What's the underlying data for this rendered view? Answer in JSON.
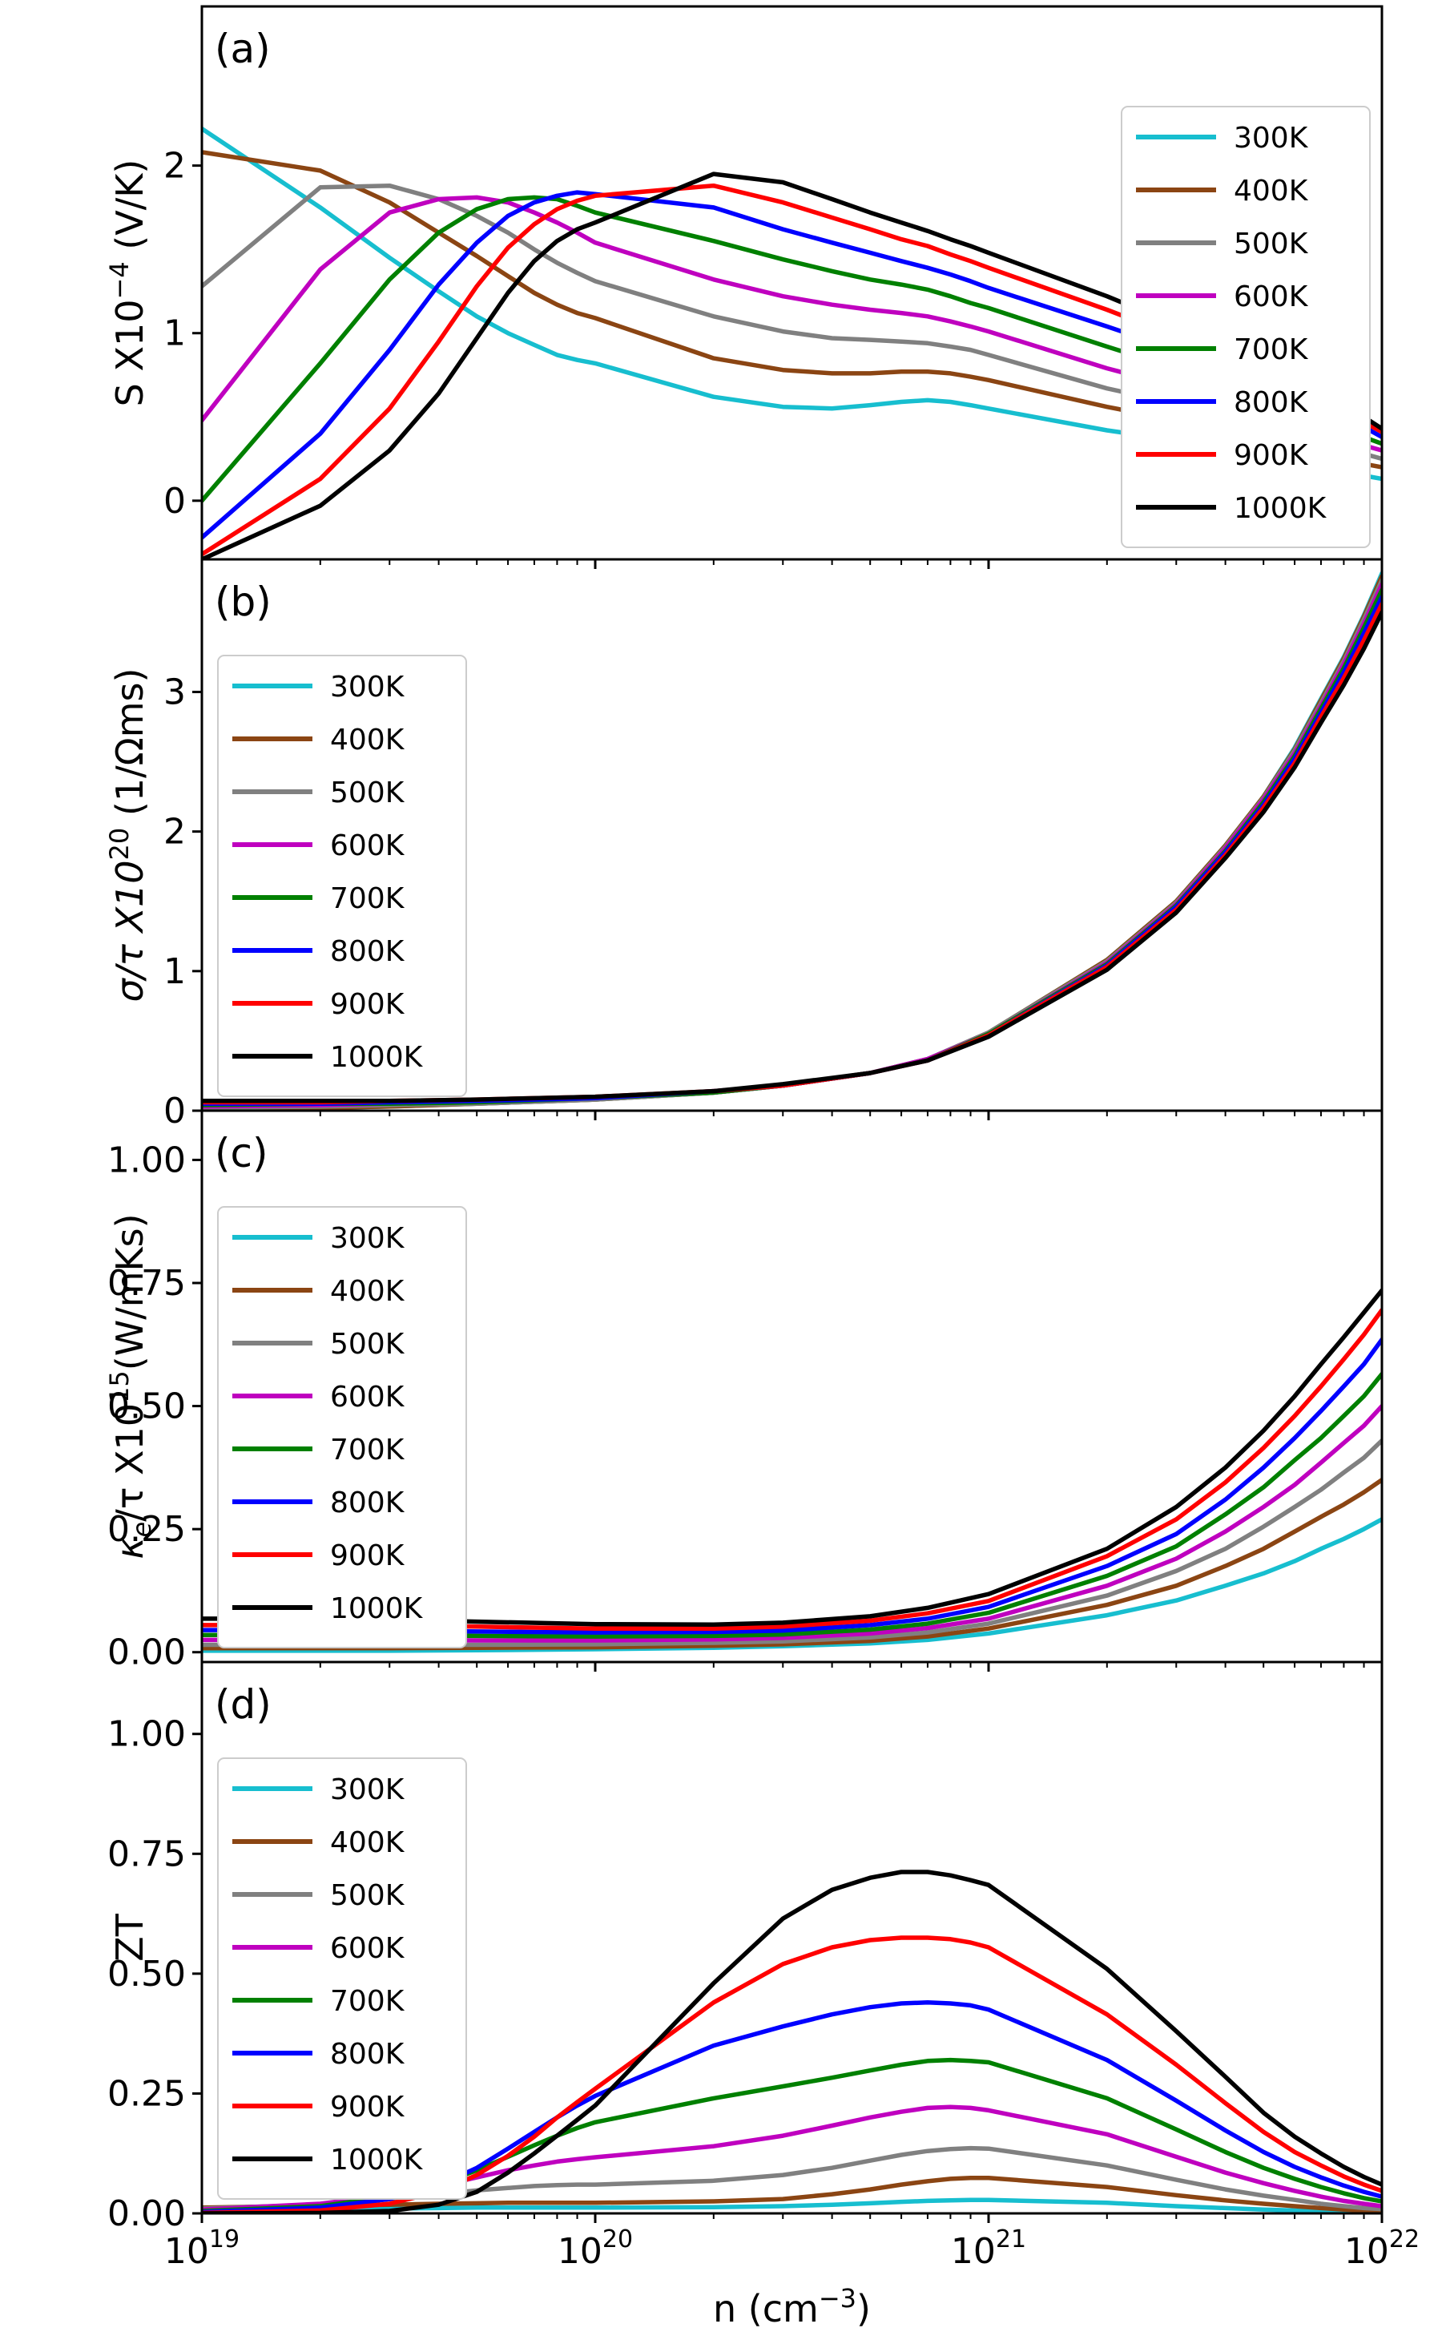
{
  "chart_data": [
    {
      "panel": "(a)",
      "type": "line",
      "ylabel": "S X10",
      "ylabel_sup": "−4",
      "ylabel_unit": " (V/K)",
      "ylim": [
        -0.35,
        2.95
      ],
      "yticks": [
        "0",
        "1",
        "2"
      ],
      "ytick_values": [
        0,
        1,
        2
      ],
      "legend": "right",
      "x": [
        1e+19,
        2e+19,
        3e+19,
        4e+19,
        5e+19,
        6e+19,
        7e+19,
        8e+19,
        9e+19,
        1e+20,
        2e+20,
        3e+20,
        4e+20,
        5e+20,
        6e+20,
        7e+20,
        8e+20,
        9e+20,
        1e+21,
        2e+21,
        3e+21,
        4e+21,
        5e+21,
        6e+21,
        7e+21,
        8e+21,
        9e+21,
        1e+22
      ],
      "series": [
        {
          "name": "300K",
          "values": [
            2.22,
            1.75,
            1.45,
            1.25,
            1.1,
            1.0,
            0.93,
            0.87,
            0.84,
            0.82,
            0.62,
            0.56,
            0.55,
            0.57,
            0.59,
            0.6,
            0.59,
            0.57,
            0.55,
            0.42,
            0.36,
            0.3,
            0.25,
            0.22,
            0.19,
            0.17,
            0.15,
            0.13
          ]
        },
        {
          "name": "400K",
          "values": [
            2.08,
            1.97,
            1.78,
            1.6,
            1.46,
            1.34,
            1.24,
            1.17,
            1.12,
            1.09,
            0.85,
            0.78,
            0.76,
            0.76,
            0.77,
            0.77,
            0.76,
            0.74,
            0.72,
            0.56,
            0.48,
            0.41,
            0.35,
            0.31,
            0.27,
            0.24,
            0.22,
            0.2
          ]
        },
        {
          "name": "500K",
          "values": [
            1.28,
            1.87,
            1.88,
            1.8,
            1.7,
            1.6,
            1.5,
            1.42,
            1.36,
            1.31,
            1.1,
            1.01,
            0.97,
            0.96,
            0.95,
            0.94,
            0.92,
            0.9,
            0.87,
            0.67,
            0.58,
            0.5,
            0.43,
            0.38,
            0.34,
            0.31,
            0.28,
            0.25
          ]
        },
        {
          "name": "600K",
          "values": [
            0.48,
            1.38,
            1.72,
            1.8,
            1.81,
            1.78,
            1.72,
            1.66,
            1.6,
            1.54,
            1.32,
            1.22,
            1.17,
            1.14,
            1.12,
            1.1,
            1.07,
            1.04,
            1.01,
            0.79,
            0.68,
            0.59,
            0.51,
            0.45,
            0.41,
            0.37,
            0.33,
            0.3
          ]
        },
        {
          "name": "700K",
          "values": [
            0.0,
            0.82,
            1.32,
            1.6,
            1.74,
            1.8,
            1.81,
            1.8,
            1.76,
            1.72,
            1.55,
            1.44,
            1.37,
            1.32,
            1.29,
            1.26,
            1.22,
            1.18,
            1.15,
            0.92,
            0.79,
            0.69,
            0.6,
            0.53,
            0.48,
            0.43,
            0.38,
            0.34
          ]
        },
        {
          "name": "800K",
          "values": [
            -0.22,
            0.4,
            0.9,
            1.29,
            1.54,
            1.7,
            1.78,
            1.82,
            1.84,
            1.83,
            1.75,
            1.62,
            1.54,
            1.48,
            1.43,
            1.39,
            1.35,
            1.31,
            1.27,
            1.04,
            0.9,
            0.79,
            0.69,
            0.61,
            0.55,
            0.49,
            0.44,
            0.38
          ]
        },
        {
          "name": "900K",
          "values": [
            -0.32,
            0.13,
            0.55,
            0.95,
            1.28,
            1.51,
            1.65,
            1.74,
            1.79,
            1.82,
            1.88,
            1.78,
            1.69,
            1.62,
            1.56,
            1.52,
            1.47,
            1.43,
            1.39,
            1.14,
            0.98,
            0.86,
            0.75,
            0.67,
            0.6,
            0.53,
            0.47,
            0.41
          ]
        },
        {
          "name": "1000K",
          "values": [
            -0.35,
            -0.03,
            0.3,
            0.64,
            0.97,
            1.24,
            1.43,
            1.55,
            1.62,
            1.66,
            1.95,
            1.9,
            1.8,
            1.72,
            1.66,
            1.61,
            1.56,
            1.52,
            1.48,
            1.22,
            1.05,
            0.92,
            0.81,
            0.72,
            0.64,
            0.57,
            0.5,
            0.43
          ]
        }
      ]
    },
    {
      "panel": "(b)",
      "type": "line",
      "ylabel": "σ/τ X10",
      "ylabel_sup": "20",
      "ylabel_unit": " (1/Ωms)",
      "ylim": [
        0,
        3.95
      ],
      "yticks": [
        "0",
        "1",
        "2",
        "3"
      ],
      "ytick_values": [
        0,
        1,
        2,
        3
      ],
      "legend": "upper left",
      "x": [
        1e+19,
        2e+19,
        3e+19,
        5e+19,
        1e+20,
        2e+20,
        3e+20,
        5e+20,
        7e+20,
        1e+21,
        2e+21,
        3e+21,
        4e+21,
        5e+21,
        6e+21,
        7e+21,
        8e+21,
        9e+21,
        1e+22
      ],
      "series": [
        {
          "name": "300K",
          "values": [
            0.01,
            0.02,
            0.03,
            0.05,
            0.08,
            0.13,
            0.18,
            0.27,
            0.37,
            0.56,
            1.08,
            1.5,
            1.9,
            2.25,
            2.6,
            2.95,
            3.25,
            3.55,
            3.85
          ]
        },
        {
          "name": "400K",
          "values": [
            0.01,
            0.02,
            0.03,
            0.05,
            0.08,
            0.13,
            0.18,
            0.27,
            0.37,
            0.56,
            1.08,
            1.5,
            1.9,
            2.25,
            2.59,
            2.94,
            3.24,
            3.54,
            3.83
          ]
        },
        {
          "name": "500K",
          "values": [
            0.02,
            0.03,
            0.04,
            0.05,
            0.08,
            0.13,
            0.18,
            0.27,
            0.37,
            0.56,
            1.07,
            1.49,
            1.89,
            2.24,
            2.58,
            2.92,
            3.22,
            3.52,
            3.8
          ]
        },
        {
          "name": "600K",
          "values": [
            0.03,
            0.04,
            0.05,
            0.06,
            0.09,
            0.13,
            0.18,
            0.27,
            0.37,
            0.55,
            1.06,
            1.48,
            1.88,
            2.23,
            2.56,
            2.9,
            3.2,
            3.49,
            3.77
          ]
        },
        {
          "name": "700K",
          "values": [
            0.04,
            0.05,
            0.05,
            0.06,
            0.09,
            0.13,
            0.18,
            0.27,
            0.36,
            0.55,
            1.05,
            1.47,
            1.86,
            2.21,
            2.54,
            2.88,
            3.17,
            3.46,
            3.73
          ]
        },
        {
          "name": "800K",
          "values": [
            0.05,
            0.05,
            0.06,
            0.07,
            0.09,
            0.14,
            0.18,
            0.27,
            0.36,
            0.54,
            1.04,
            1.46,
            1.85,
            2.19,
            2.52,
            2.85,
            3.14,
            3.42,
            3.68
          ]
        },
        {
          "name": "900K",
          "values": [
            0.06,
            0.06,
            0.07,
            0.08,
            0.1,
            0.14,
            0.18,
            0.27,
            0.36,
            0.54,
            1.03,
            1.44,
            1.83,
            2.17,
            2.49,
            2.82,
            3.1,
            3.37,
            3.63
          ]
        },
        {
          "name": "1000K",
          "values": [
            0.07,
            0.07,
            0.07,
            0.08,
            0.1,
            0.14,
            0.19,
            0.27,
            0.36,
            0.53,
            1.01,
            1.42,
            1.81,
            2.14,
            2.46,
            2.78,
            3.05,
            3.31,
            3.57
          ]
        }
      ]
    },
    {
      "panel": "(c)",
      "type": "line",
      "ylabel": "κ",
      "ylabel_sub": "e",
      "ylabel_mid": "/τ X10",
      "ylabel_sup": "15",
      "ylabel_unit": "(W/mKs)",
      "ylim": [
        -0.02,
        1.1
      ],
      "yticks": [
        "0.00",
        "0.25",
        "0.50",
        "0.75",
        "1.00"
      ],
      "ytick_values": [
        0,
        0.25,
        0.5,
        0.75,
        1.0
      ],
      "legend": "upper left",
      "x": [
        1e+19,
        2e+19,
        3e+19,
        5e+19,
        1e+20,
        2e+20,
        3e+20,
        5e+20,
        7e+20,
        1e+21,
        2e+21,
        3e+21,
        4e+21,
        5e+21,
        6e+21,
        7e+21,
        8e+21,
        9e+21,
        1e+22
      ],
      "series": [
        {
          "name": "300K",
          "values": [
            0.003,
            0.003,
            0.003,
            0.004,
            0.006,
            0.009,
            0.012,
            0.018,
            0.025,
            0.038,
            0.075,
            0.105,
            0.135,
            0.16,
            0.185,
            0.21,
            0.23,
            0.25,
            0.27
          ]
        },
        {
          "name": "400K",
          "values": [
            0.008,
            0.008,
            0.008,
            0.009,
            0.01,
            0.013,
            0.016,
            0.023,
            0.032,
            0.048,
            0.096,
            0.135,
            0.175,
            0.21,
            0.245,
            0.275,
            0.3,
            0.325,
            0.35
          ]
        },
        {
          "name": "500K",
          "values": [
            0.015,
            0.015,
            0.015,
            0.015,
            0.016,
            0.019,
            0.022,
            0.03,
            0.04,
            0.058,
            0.115,
            0.165,
            0.21,
            0.255,
            0.295,
            0.33,
            0.365,
            0.395,
            0.43
          ]
        },
        {
          "name": "600K",
          "values": [
            0.025,
            0.025,
            0.025,
            0.024,
            0.024,
            0.026,
            0.029,
            0.038,
            0.049,
            0.068,
            0.135,
            0.19,
            0.245,
            0.295,
            0.34,
            0.385,
            0.425,
            0.46,
            0.5
          ]
        },
        {
          "name": "700K",
          "values": [
            0.035,
            0.035,
            0.034,
            0.033,
            0.032,
            0.033,
            0.036,
            0.046,
            0.058,
            0.08,
            0.155,
            0.215,
            0.28,
            0.335,
            0.39,
            0.435,
            0.48,
            0.52,
            0.565
          ]
        },
        {
          "name": "800K",
          "values": [
            0.045,
            0.045,
            0.044,
            0.042,
            0.04,
            0.041,
            0.044,
            0.055,
            0.068,
            0.092,
            0.175,
            0.24,
            0.31,
            0.375,
            0.435,
            0.49,
            0.54,
            0.585,
            0.635
          ]
        },
        {
          "name": "900K",
          "values": [
            0.055,
            0.055,
            0.054,
            0.052,
            0.048,
            0.048,
            0.052,
            0.064,
            0.079,
            0.104,
            0.195,
            0.27,
            0.345,
            0.415,
            0.48,
            0.54,
            0.595,
            0.645,
            0.695
          ]
        },
        {
          "name": "1000K",
          "values": [
            0.068,
            0.068,
            0.066,
            0.062,
            0.057,
            0.056,
            0.06,
            0.073,
            0.09,
            0.118,
            0.21,
            0.295,
            0.375,
            0.45,
            0.52,
            0.585,
            0.64,
            0.69,
            0.735
          ]
        }
      ]
    },
    {
      "panel": "(d)",
      "type": "line",
      "ylabel": "ZT",
      "xlabel": "n (cm",
      "xlabel_sup": "−3",
      "xlabel_end": ")",
      "xlim": [
        1e+19,
        1e+22
      ],
      "xtick_base": "10",
      "xtick_exps": [
        "19",
        "20",
        "21",
        "22"
      ],
      "ylim": [
        0,
        1.15
      ],
      "yticks": [
        "0.00",
        "0.25",
        "0.50",
        "0.75",
        "1.00"
      ],
      "ytick_values": [
        0,
        0.25,
        0.5,
        0.75,
        1.0
      ],
      "legend": "upper left",
      "x": [
        1e+19,
        2e+19,
        3e+19,
        4e+19,
        5e+19,
        6e+19,
        7e+19,
        8e+19,
        9e+19,
        1e+20,
        2e+20,
        3e+20,
        4e+20,
        5e+20,
        6e+20,
        7e+20,
        8e+20,
        9e+20,
        1e+21,
        2e+21,
        3e+21,
        4e+21,
        5e+21,
        6e+21,
        7e+21,
        8e+21,
        9e+21,
        1e+22
      ],
      "series": [
        {
          "name": "300K",
          "values": [
            0.005,
            0.008,
            0.01,
            0.011,
            0.012,
            0.012,
            0.012,
            0.012,
            0.012,
            0.012,
            0.013,
            0.015,
            0.018,
            0.021,
            0.024,
            0.026,
            0.027,
            0.028,
            0.028,
            0.022,
            0.015,
            0.011,
            0.008,
            0.006,
            0.004,
            0.003,
            0.002,
            0.002
          ]
        },
        {
          "name": "400K",
          "values": [
            0.012,
            0.016,
            0.018,
            0.02,
            0.021,
            0.022,
            0.022,
            0.022,
            0.022,
            0.022,
            0.025,
            0.03,
            0.04,
            0.05,
            0.06,
            0.067,
            0.072,
            0.074,
            0.074,
            0.055,
            0.038,
            0.027,
            0.02,
            0.015,
            0.011,
            0.008,
            0.006,
            0.005
          ]
        },
        {
          "name": "500K",
          "values": [
            0.01,
            0.018,
            0.03,
            0.04,
            0.048,
            0.053,
            0.057,
            0.059,
            0.06,
            0.06,
            0.068,
            0.08,
            0.095,
            0.11,
            0.122,
            0.13,
            0.134,
            0.136,
            0.135,
            0.1,
            0.07,
            0.05,
            0.037,
            0.028,
            0.02,
            0.015,
            0.011,
            0.009
          ]
        },
        {
          "name": "600K",
          "values": [
            0.008,
            0.02,
            0.038,
            0.057,
            0.075,
            0.09,
            0.1,
            0.108,
            0.113,
            0.117,
            0.14,
            0.162,
            0.183,
            0.2,
            0.212,
            0.22,
            0.222,
            0.22,
            0.215,
            0.165,
            0.118,
            0.085,
            0.063,
            0.047,
            0.035,
            0.026,
            0.02,
            0.015
          ]
        },
        {
          "name": "700K",
          "values": [
            0.005,
            0.015,
            0.035,
            0.06,
            0.09,
            0.118,
            0.142,
            0.162,
            0.178,
            0.19,
            0.24,
            0.265,
            0.283,
            0.298,
            0.31,
            0.318,
            0.32,
            0.318,
            0.315,
            0.24,
            0.175,
            0.128,
            0.095,
            0.072,
            0.055,
            0.042,
            0.032,
            0.025
          ]
        },
        {
          "name": "800K",
          "values": [
            0.003,
            0.012,
            0.03,
            0.058,
            0.095,
            0.135,
            0.17,
            0.2,
            0.225,
            0.245,
            0.35,
            0.39,
            0.415,
            0.43,
            0.438,
            0.44,
            0.438,
            0.434,
            0.425,
            0.32,
            0.235,
            0.173,
            0.128,
            0.097,
            0.075,
            0.058,
            0.045,
            0.035
          ]
        },
        {
          "name": "900K",
          "values": [
            0.001,
            0.006,
            0.02,
            0.045,
            0.08,
            0.12,
            0.16,
            0.2,
            0.232,
            0.26,
            0.44,
            0.52,
            0.555,
            0.57,
            0.575,
            0.575,
            0.572,
            0.565,
            0.555,
            0.415,
            0.31,
            0.23,
            0.17,
            0.128,
            0.1,
            0.077,
            0.06,
            0.047
          ]
        },
        {
          "name": "1000K",
          "values": [
            0.0,
            0.001,
            0.005,
            0.018,
            0.045,
            0.085,
            0.125,
            0.162,
            0.195,
            0.225,
            0.48,
            0.615,
            0.675,
            0.7,
            0.712,
            0.712,
            0.705,
            0.695,
            0.685,
            0.51,
            0.38,
            0.285,
            0.21,
            0.16,
            0.125,
            0.097,
            0.076,
            0.06
          ]
        }
      ]
    }
  ],
  "colors": {
    "300K": "#17becf",
    "400K": "#8b4513",
    "500K": "#808080",
    "600K": "#bf00bf",
    "700K": "#008000",
    "800K": "#0000ff",
    "900K": "#ff0000",
    "1000K": "#000000"
  }
}
